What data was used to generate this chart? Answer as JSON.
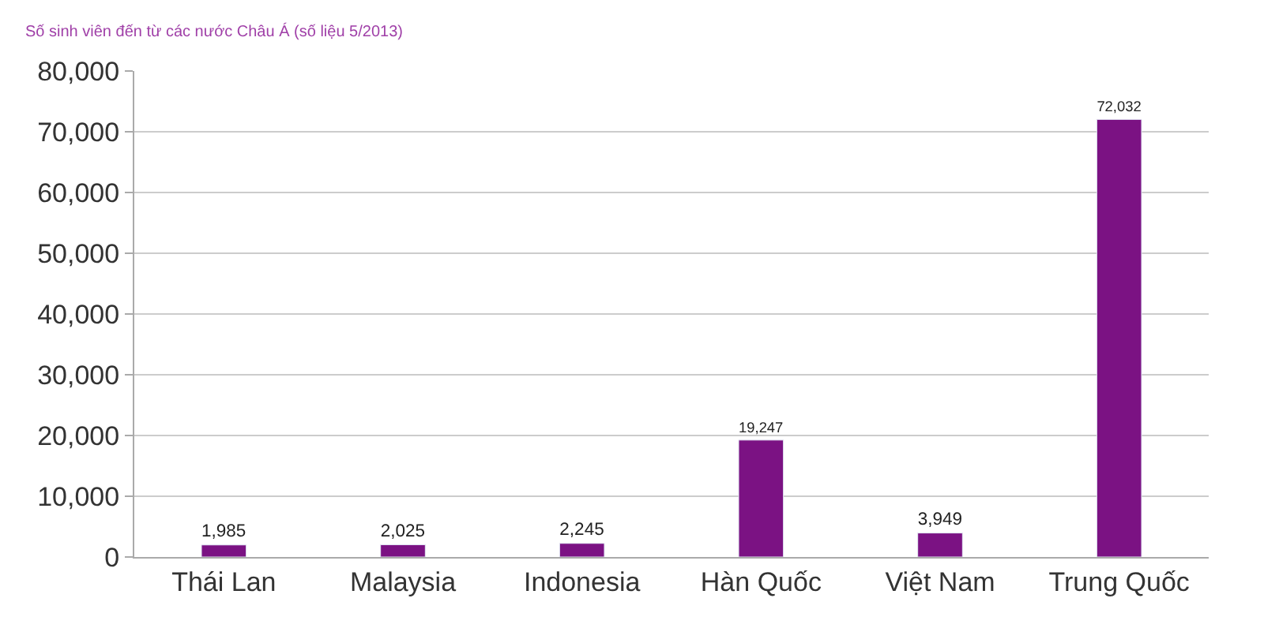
{
  "chart_data": {
    "type": "bar",
    "title": "Số sinh viên đến từ các nước Châu Á (số liệu 5/2013)",
    "categories": [
      "Thái Lan",
      "Malaysia",
      "Indonesia",
      "Hàn Quốc",
      "Việt Nam",
      "Trung Quốc"
    ],
    "values": [
      1985,
      2025,
      2245,
      19247,
      3949,
      72032
    ],
    "value_labels": [
      "1,985",
      "2,025",
      "2,245",
      "19,247",
      "3,949",
      "72,032"
    ],
    "color": "#7b1283",
    "ylim": [
      0,
      80000
    ],
    "yticks": [
      {
        "value": 0,
        "label": "0"
      },
      {
        "value": 10000,
        "label": "10,000"
      },
      {
        "value": 20000,
        "label": "20,000"
      },
      {
        "value": 30000,
        "label": "30,000"
      },
      {
        "value": 40000,
        "label": "40,000"
      },
      {
        "value": 50000,
        "label": "50,000"
      },
      {
        "value": 60000,
        "label": "60,000"
      },
      {
        "value": 70000,
        "label": "70,000"
      },
      {
        "value": 80000,
        "label": "80,000"
      }
    ],
    "grid": "y",
    "legend": false
  }
}
